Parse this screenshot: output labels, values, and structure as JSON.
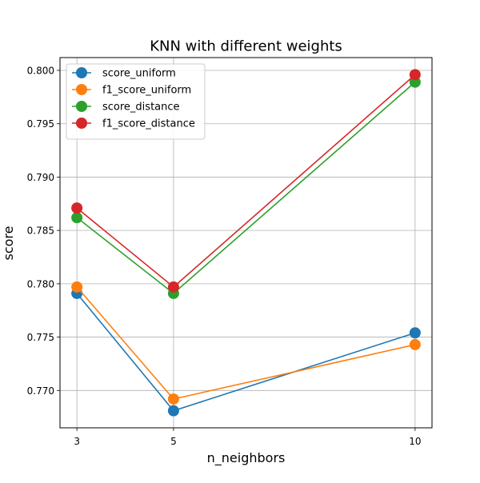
{
  "chart_data": {
    "type": "line",
    "title": "KNN with different weights",
    "xlabel": "n_neighbors",
    "ylabel": "score",
    "x": [
      3,
      5,
      10
    ],
    "xticks": [
      "3",
      "5",
      "10"
    ],
    "xlim": [
      2.65,
      10.35
    ],
    "ylim": [
      0.7665,
      0.8012
    ],
    "yticks": [
      "0.770",
      "0.775",
      "0.780",
      "0.785",
      "0.790",
      "0.795",
      "0.800"
    ],
    "grid": true,
    "legend_position": "upper-left",
    "series": [
      {
        "name": "score_uniform",
        "color": "#1f77b4",
        "values": [
          0.7791,
          0.7681,
          0.7754
        ]
      },
      {
        "name": "f1_score_uniform",
        "color": "#ff7f0e",
        "values": [
          0.7797,
          0.7692,
          0.7743
        ]
      },
      {
        "name": "score_distance",
        "color": "#2ca02c",
        "values": [
          0.7862,
          0.7791,
          0.7989
        ]
      },
      {
        "name": "f1_score_distance",
        "color": "#d62728",
        "values": [
          0.7871,
          0.7797,
          0.7996
        ]
      }
    ]
  }
}
